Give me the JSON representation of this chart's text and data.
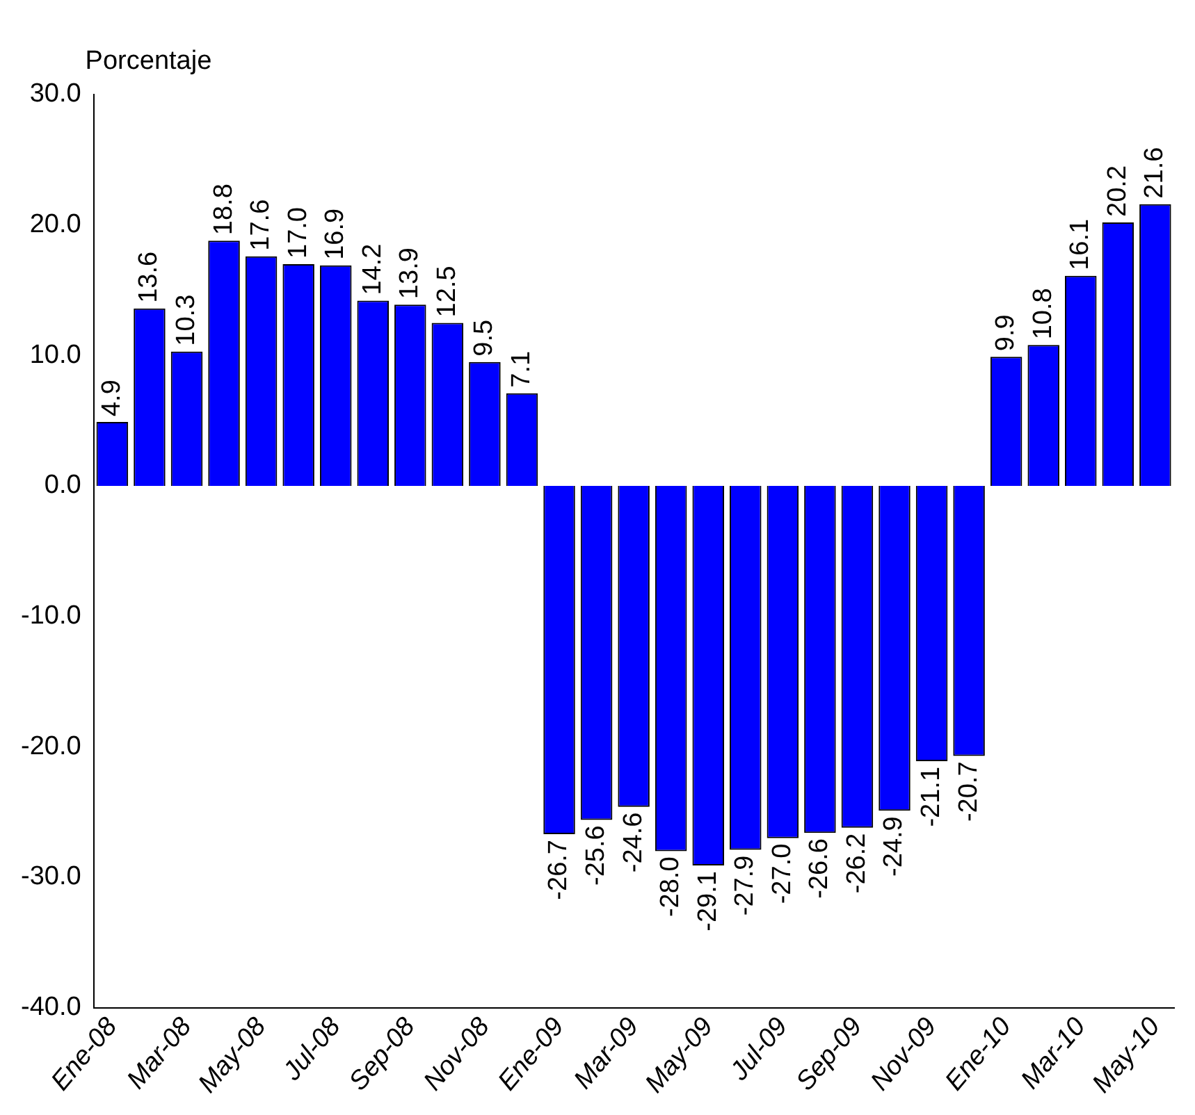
{
  "chart_data": {
    "type": "bar",
    "ylabel": "Porcentaje",
    "categories": [
      "Ene-08",
      null,
      "Mar-08",
      null,
      "May-08",
      null,
      "Jul-08",
      null,
      "Sep-08",
      null,
      "Nov-08",
      null,
      "Ene-09",
      null,
      "Mar-09",
      null,
      "May-09",
      null,
      "Jul-09",
      null,
      "Sep-09",
      null,
      "Nov-09",
      null,
      "Ene-10",
      null,
      "Mar-10",
      null,
      "May-10"
    ],
    "values": [
      4.9,
      13.6,
      10.3,
      18.8,
      17.6,
      17.0,
      16.9,
      14.2,
      13.9,
      12.5,
      9.5,
      7.1,
      -26.7,
      -25.6,
      -24.6,
      -28.0,
      -29.1,
      -27.9,
      -27.0,
      -26.6,
      -26.2,
      -24.9,
      -21.1,
      -20.7,
      9.9,
      10.8,
      16.1,
      20.2,
      21.6
    ],
    "value_labels": [
      "4.9",
      "13.6",
      "10.3",
      "18.8",
      "17.6",
      "17.0",
      "16.9",
      "14.2",
      "13.9",
      "12.5",
      "9.5",
      "7.1",
      "-26.7",
      "-25.6",
      "-24.6",
      "-28.0",
      "-29.1",
      "-27.9",
      "-27.0",
      "-26.6",
      "-26.2",
      "-24.9",
      "-21.1",
      "-20.7",
      "9.9",
      "10.8",
      "16.1",
      "20.2",
      "21.6"
    ],
    "color": "#0000ff",
    "ylim": [
      -40,
      30
    ],
    "yticks": [
      {
        "value": -40,
        "label": "-40.0"
      },
      {
        "value": -30,
        "label": "-30.0"
      },
      {
        "value": -20,
        "label": "-20.0"
      },
      {
        "value": -10,
        "label": "-10.0"
      },
      {
        "value": 0,
        "label": "0.0"
      },
      {
        "value": 10,
        "label": "10.0"
      },
      {
        "value": 20,
        "label": "20.0"
      },
      {
        "value": 30,
        "label": "30.0"
      }
    ],
    "grid": false,
    "legend": false
  }
}
